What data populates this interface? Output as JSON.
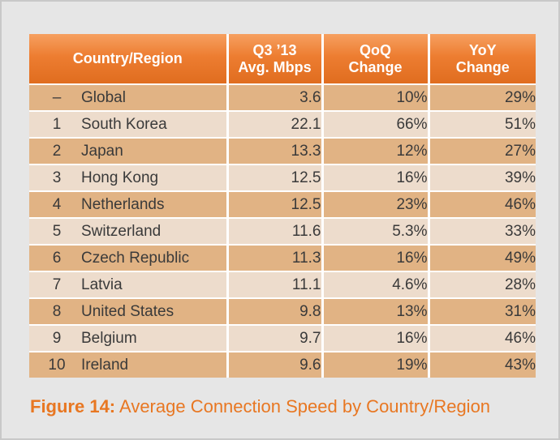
{
  "table": {
    "headers": {
      "country": [
        "Country/Region"
      ],
      "speed": [
        "Q3 ’13",
        "Avg. Mbps"
      ],
      "qoq": [
        "QoQ",
        "Change"
      ],
      "yoy": [
        "YoY",
        "Change"
      ]
    },
    "rows": [
      {
        "rank": "–",
        "country": "Global",
        "speed": "3.6",
        "qoq": "10%",
        "yoy": "29%"
      },
      {
        "rank": "1",
        "country": "South Korea",
        "speed": "22.1",
        "qoq": "66%",
        "yoy": "51%"
      },
      {
        "rank": "2",
        "country": "Japan",
        "speed": "13.3",
        "qoq": "12%",
        "yoy": "27%"
      },
      {
        "rank": "3",
        "country": "Hong Kong",
        "speed": "12.5",
        "qoq": "16%",
        "yoy": "39%"
      },
      {
        "rank": "4",
        "country": "Netherlands",
        "speed": "12.5",
        "qoq": "23%",
        "yoy": "46%"
      },
      {
        "rank": "5",
        "country": "Switzerland",
        "speed": "11.6",
        "qoq": "5.3%",
        "yoy": "33%"
      },
      {
        "rank": "6",
        "country": "Czech Republic",
        "speed": "11.3",
        "qoq": "16%",
        "yoy": "49%"
      },
      {
        "rank": "7",
        "country": "Latvia",
        "speed": "11.1",
        "qoq": "4.6%",
        "yoy": "28%"
      },
      {
        "rank": "8",
        "country": "United States",
        "speed": "9.8",
        "qoq": "13%",
        "yoy": "31%"
      },
      {
        "rank": "9",
        "country": "Belgium",
        "speed": "9.7",
        "qoq": "16%",
        "yoy": "46%"
      },
      {
        "rank": "10",
        "country": "Ireland",
        "speed": "9.6",
        "qoq": "19%",
        "yoy": "43%"
      }
    ]
  },
  "caption": {
    "label": "Figure 14:",
    "text": " Average Connection Speed by Country/Region"
  },
  "colors": {
    "header": "#ed7d31",
    "row_odd": "#e1b384",
    "row_even": "#eddccc",
    "caption": "#e87722",
    "background": "#e6e6e6"
  }
}
